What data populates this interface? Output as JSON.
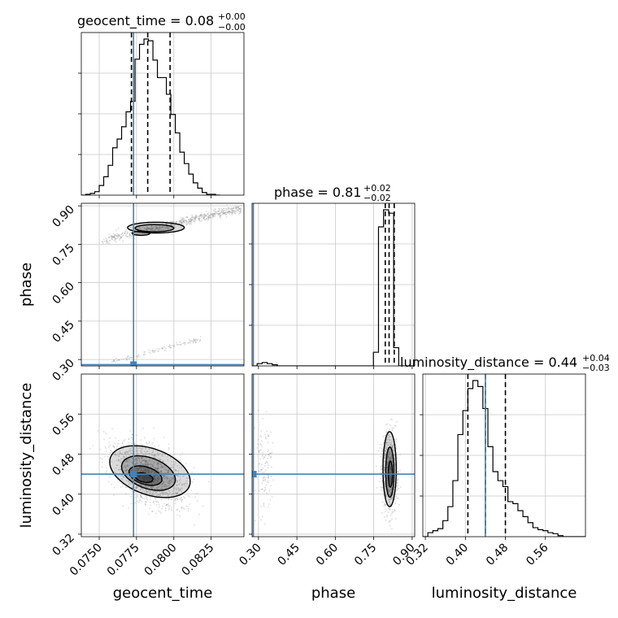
{
  "chart_data": {
    "type": "corner",
    "colors": {
      "truth": "#4682b4",
      "hist": "#000000",
      "grid": "#c8c8c8",
      "points": "#9a9a9a"
    },
    "parameters": [
      {
        "name": "geocent_time",
        "range": [
          0.0738,
          0.0847
        ],
        "ticks": [
          0.075,
          0.0775,
          0.08,
          0.0825
        ],
        "tick_labels": [
          "0.0750",
          "0.0775",
          "0.0800",
          "0.0825"
        ],
        "truth": 0.0773,
        "quantiles": [
          0.07716,
          0.07825,
          0.07975
        ],
        "title": "geocent_time = 0.08",
        "title_sup": "+0.00",
        "title_sub": "−0.00",
        "hist": {
          "edges": [
            0.0738,
            0.0741,
            0.0744,
            0.0747,
            0.075,
            0.0753,
            0.0756,
            0.0759,
            0.0762,
            0.0765,
            0.0768,
            0.0771,
            0.0774,
            0.0777,
            0.078,
            0.0783,
            0.0786,
            0.0789,
            0.0792,
            0.0795,
            0.0798,
            0.0801,
            0.0804,
            0.0807,
            0.081,
            0.0813,
            0.0816,
            0.0819,
            0.0822,
            0.0825,
            0.0828,
            0.0831
          ],
          "counts": [
            0,
            1,
            2,
            4,
            11,
            21,
            34,
            54,
            64,
            78,
            95,
            107,
            155,
            172,
            178,
            176,
            154,
            134,
            134,
            115,
            92,
            71,
            49,
            36,
            24,
            14,
            8,
            3,
            1,
            1,
            0
          ]
        }
      },
      {
        "name": "phase",
        "range": [
          0.275,
          0.91
        ],
        "ticks": [
          0.3,
          0.45,
          0.6,
          0.75,
          0.9
        ],
        "tick_labels": [
          "0.30",
          "0.45",
          "0.60",
          "0.75",
          "0.90"
        ],
        "truth": 0.28,
        "quantiles": [
          0.795,
          0.81,
          0.83
        ],
        "title": "phase = 0.81",
        "title_sup": "+0.02",
        "title_sub": "−0.02",
        "hist": {
          "edges": [
            0.275,
            0.2947,
            0.3145,
            0.3342,
            0.354,
            0.3737,
            0.3935,
            0.4132,
            0.4329,
            0.4527,
            0.4724,
            0.4922,
            0.5119,
            0.5317,
            0.5514,
            0.5712,
            0.5909,
            0.6106,
            0.6304,
            0.6501,
            0.6699,
            0.6896,
            0.7094,
            0.7291,
            0.7488,
            0.7686,
            0.7883,
            0.8081,
            0.8278,
            0.8476,
            0.8673,
            0.887,
            0.9068
          ],
          "counts": [
            0,
            2,
            3,
            2,
            1,
            0,
            0,
            0,
            0,
            0,
            0,
            0,
            0,
            0,
            0,
            0,
            0,
            0,
            0,
            0,
            0,
            0,
            0,
            0,
            12,
            122,
            137,
            134,
            16,
            0,
            0,
            0
          ]
        }
      },
      {
        "name": "luminosity_distance",
        "range": [
          0.315,
          0.64
        ],
        "ticks": [
          0.32,
          0.4,
          0.48,
          0.56
        ],
        "tick_labels": [
          "0.32",
          "0.40",
          "0.48",
          "0.56"
        ],
        "truth": 0.44,
        "quantiles": [
          0.405,
          0.44,
          0.48
        ],
        "title": "luminosity_distance = 0.44",
        "title_sup": "+0.04",
        "title_sub": "−0.03",
        "hist": {
          "edges": [
            0.315,
            0.325,
            0.335,
            0.345,
            0.355,
            0.365,
            0.375,
            0.385,
            0.395,
            0.405,
            0.415,
            0.425,
            0.435,
            0.445,
            0.455,
            0.465,
            0.475,
            0.485,
            0.495,
            0.505,
            0.515,
            0.525,
            0.535,
            0.545,
            0.555,
            0.565,
            0.575,
            0.585,
            0.595,
            0.605,
            0.615,
            0.625,
            0.635,
            0.64
          ],
          "counts": [
            0,
            4,
            6,
            8,
            16,
            30,
            56,
            102,
            126,
            148,
            156,
            150,
            128,
            90,
            65,
            56,
            50,
            35,
            33,
            26,
            20,
            14,
            9,
            7,
            6,
            4,
            3,
            1,
            0,
            0,
            0,
            0,
            0
          ]
        }
      }
    ],
    "pairs": [
      {
        "x": "geocent_time",
        "y": "phase",
        "ellipses": [
          {
            "cx": 0.0788,
            "cy": 0.815,
            "rx": 0.0019,
            "ry": 0.021,
            "angle_deg": 0
          },
          {
            "cx": 0.0787,
            "cy": 0.813,
            "rx": 0.0013,
            "ry": 0.014,
            "angle_deg": 0
          },
          {
            "cx": 0.0778,
            "cy": 0.793,
            "rx": 0.0006,
            "ry": 0.008,
            "angle_deg": 0
          }
        ],
        "bands": [
          {
            "x0": 0.0752,
            "y0": 0.765,
            "x1": 0.0845,
            "y1": 0.89,
            "width": 0.018,
            "n": 650,
            "seed": 11
          },
          {
            "x0": 0.0755,
            "y0": 0.287,
            "x1": 0.0818,
            "y1": 0.38,
            "width": 0.008,
            "n": 110,
            "seed": 23
          }
        ]
      },
      {
        "x": "geocent_time",
        "y": "luminosity_distance",
        "blob": {
          "cx": 0.0783,
          "cy": 0.44,
          "sx": 0.0012,
          "sy": 0.032,
          "rho": -0.45,
          "n": 1400,
          "seed": 37
        },
        "contours": [
          {
            "cx": 0.0784,
            "cy": 0.445,
            "rx": 0.0027,
            "ry": 0.048,
            "tilt": -0.45
          },
          {
            "cx": 0.0783,
            "cy": 0.442,
            "rx": 0.0018,
            "ry": 0.032,
            "tilt": -0.45
          },
          {
            "cx": 0.0781,
            "cy": 0.437,
            "rx": 0.0011,
            "ry": 0.018,
            "tilt": -0.45
          },
          {
            "cx": 0.078,
            "cy": 0.433,
            "rx": 0.0006,
            "ry": 0.009,
            "tilt": -0.4
          }
        ]
      },
      {
        "x": "phase",
        "y": "luminosity_distance",
        "blob": {
          "cx": 0.812,
          "cy": 0.445,
          "sx": 0.015,
          "sy": 0.038,
          "rho": 0,
          "n": 900,
          "seed": 53
        },
        "extra_blob": {
          "cx": 0.325,
          "cy": 0.45,
          "sx": 0.018,
          "sy": 0.05,
          "rho": 0,
          "n": 120,
          "seed": 71
        },
        "contours": [
          {
            "cx": 0.812,
            "cy": 0.45,
            "rx": 0.026,
            "ry": 0.075,
            "tilt": 0
          },
          {
            "cx": 0.813,
            "cy": 0.444,
            "rx": 0.016,
            "ry": 0.05,
            "tilt": 0
          },
          {
            "cx": 0.815,
            "cy": 0.44,
            "rx": 0.008,
            "ry": 0.026,
            "tilt": 0
          }
        ]
      }
    ]
  }
}
